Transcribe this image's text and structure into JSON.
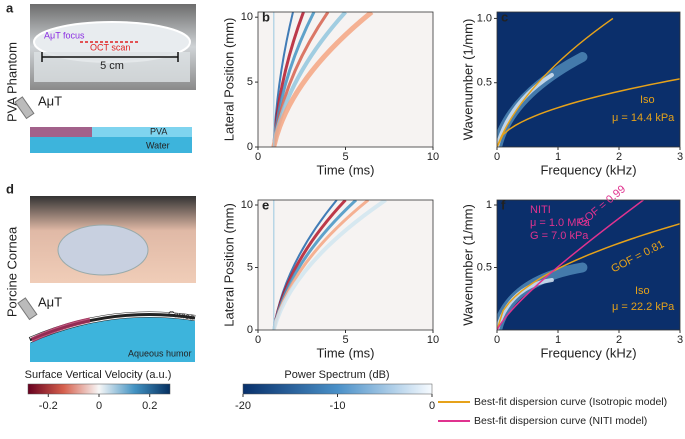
{
  "row_labels": [
    "PVA Phantom",
    "Porcine Cornea"
  ],
  "panel_a": {
    "label": "a",
    "focus": "AμT focus",
    "scan": "OCT scan",
    "scale": "5 cm",
    "probe": "AμT",
    "layer1": "PVA",
    "layer2": "Water"
  },
  "panel_d": {
    "label": "d",
    "probe": "AμT",
    "layer1": "Cornea",
    "layer2": "Aqueous humor"
  },
  "chart_data": [
    {
      "type": "heatmap",
      "panel": "b",
      "colormap": "diverging",
      "xlabel": "Time (ms)",
      "ylabel": "Lateral Position (mm)",
      "xlim": [
        0,
        10
      ],
      "ylim": [
        0,
        10.4
      ],
      "xticks": [
        0,
        5,
        10
      ],
      "yticks": [
        0,
        5,
        10
      ]
    },
    {
      "type": "heatmap",
      "panel": "c",
      "colormap": "blues",
      "xlabel": "Frequency (kHz)",
      "ylabel": "Wavenumber (1/mm)",
      "xlim": [
        0,
        3
      ],
      "ylim": [
        0,
        1.05
      ],
      "xticks": [
        0,
        1,
        2,
        3
      ],
      "yticks": [
        0.5,
        {
          "value": 1,
          "label": "1.0"
        }
      ],
      "annotations": [
        {
          "text": "Iso",
          "color": "#e6a21a"
        },
        {
          "text": "μ = 14.4 kPa",
          "color": "#e6a21a"
        }
      ]
    },
    {
      "type": "heatmap",
      "panel": "e",
      "colormap": "diverging",
      "xlabel": "Time (ms)",
      "ylabel": "Lateral Position (mm)",
      "xlim": [
        0,
        10
      ],
      "ylim": [
        0,
        10.4
      ],
      "xticks": [
        0,
        5,
        10
      ],
      "yticks": [
        0,
        5,
        10
      ]
    },
    {
      "type": "heatmap",
      "panel": "f",
      "colormap": "blues",
      "xlabel": "Frequency (kHz)",
      "ylabel": "Wavenumber (1/mm)",
      "xlim": [
        0,
        3
      ],
      "ylim": [
        0,
        1.04
      ],
      "xticks": [
        0,
        1,
        2,
        3
      ],
      "yticks": [
        0.5,
        1
      ],
      "annotations": [
        {
          "text": "NITI",
          "color": "#e0338f"
        },
        {
          "text": "μ = 1.0 MPa",
          "color": "#e0338f"
        },
        {
          "text": "G = 7.0 kPa",
          "color": "#e0338f"
        },
        {
          "text": "GOF = 0.99",
          "color": "#e0338f"
        },
        {
          "text": "GOF = 0.81",
          "color": "#e6a21a"
        },
        {
          "text": "Iso",
          "color": "#e6a21a"
        },
        {
          "text": "μ = 22.2 kPa",
          "color": "#e6a21a"
        }
      ]
    }
  ],
  "colorbars": [
    {
      "title": "Surface Vertical Velocity (a.u.)",
      "lim": [
        -0.28,
        0.28
      ],
      "ticks": [
        -0.2,
        0,
        0.2
      ]
    },
    {
      "title": "Power Spectrum (dB)",
      "lim": [
        -20,
        0
      ],
      "ticks": [
        -20,
        -10,
        0
      ]
    }
  ],
  "legend": [
    {
      "name": "Best-fit dispersion curve (Isotropic model)",
      "color": "#e6a21a"
    },
    {
      "name": "Best-fit dispersion curve (NITI model)",
      "color": "#e0338f"
    }
  ]
}
